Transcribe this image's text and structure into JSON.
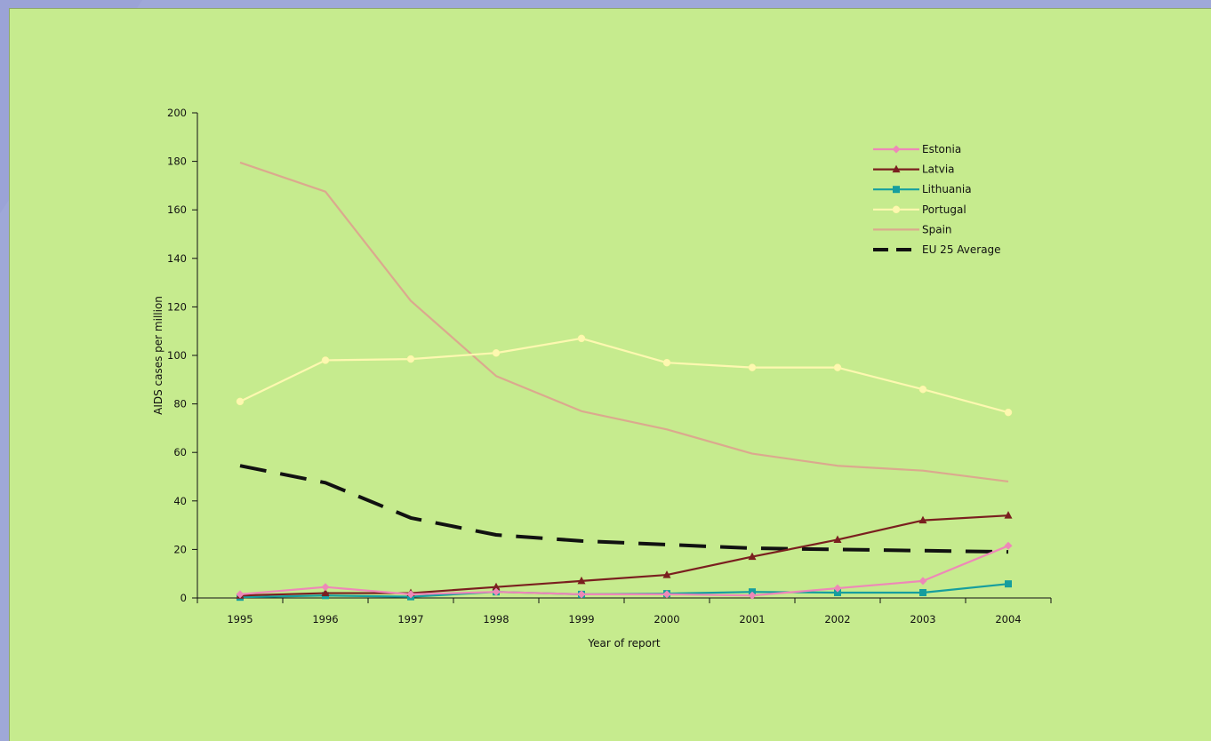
{
  "colors": {
    "background_outer": "#9fa8d8",
    "panel": "#c6eb8e",
    "axis": "#111111"
  },
  "chart_data": {
    "type": "line",
    "title": "",
    "xlabel": "Year of report",
    "ylabel": "AIDS cases per million",
    "categories": [
      "1995",
      "1996",
      "1997",
      "1998",
      "1999",
      "2000",
      "2001",
      "2002",
      "2003",
      "2004"
    ],
    "ylim": [
      0,
      200
    ],
    "yticks": [
      0,
      20,
      40,
      60,
      80,
      100,
      120,
      140,
      160,
      180,
      200
    ],
    "grid": false,
    "legend_position": "top-right",
    "series": [
      {
        "name": "Estonia",
        "color": "#ee88b8",
        "marker": "diamond",
        "dash": false,
        "values": [
          1.5,
          4.5,
          1.5,
          2.5,
          1.5,
          1.5,
          1.0,
          4.0,
          7.0,
          21.5
        ]
      },
      {
        "name": "Latvia",
        "color": "#7a1f1f",
        "marker": "triangle",
        "dash": false,
        "values": [
          1.0,
          2.0,
          2.0,
          4.5,
          7.0,
          9.5,
          17.0,
          24.0,
          32.0,
          34.0
        ]
      },
      {
        "name": "Lithuania",
        "color": "#169e9e",
        "marker": "square",
        "dash": false,
        "values": [
          0.3,
          1.0,
          0.5,
          2.5,
          1.5,
          1.8,
          2.5,
          2.2,
          2.2,
          5.8
        ]
      },
      {
        "name": "Portugal",
        "color": "#fdf8b0",
        "marker": "circle",
        "dash": false,
        "values": [
          81,
          98,
          98.5,
          101,
          107,
          97,
          95,
          95,
          86,
          76.5
        ]
      },
      {
        "name": "Spain",
        "color": "#dba98e",
        "marker": "none",
        "dash": false,
        "values": [
          179.5,
          167.5,
          122.5,
          91.5,
          77,
          69.5,
          59.5,
          54.5,
          52.5,
          48
        ]
      },
      {
        "name": "EU 25 Average",
        "color": "#111111",
        "marker": "none",
        "dash": true,
        "values": [
          54.5,
          47.5,
          33,
          26,
          23.5,
          22,
          20.5,
          20,
          19.5,
          19
        ]
      }
    ]
  }
}
